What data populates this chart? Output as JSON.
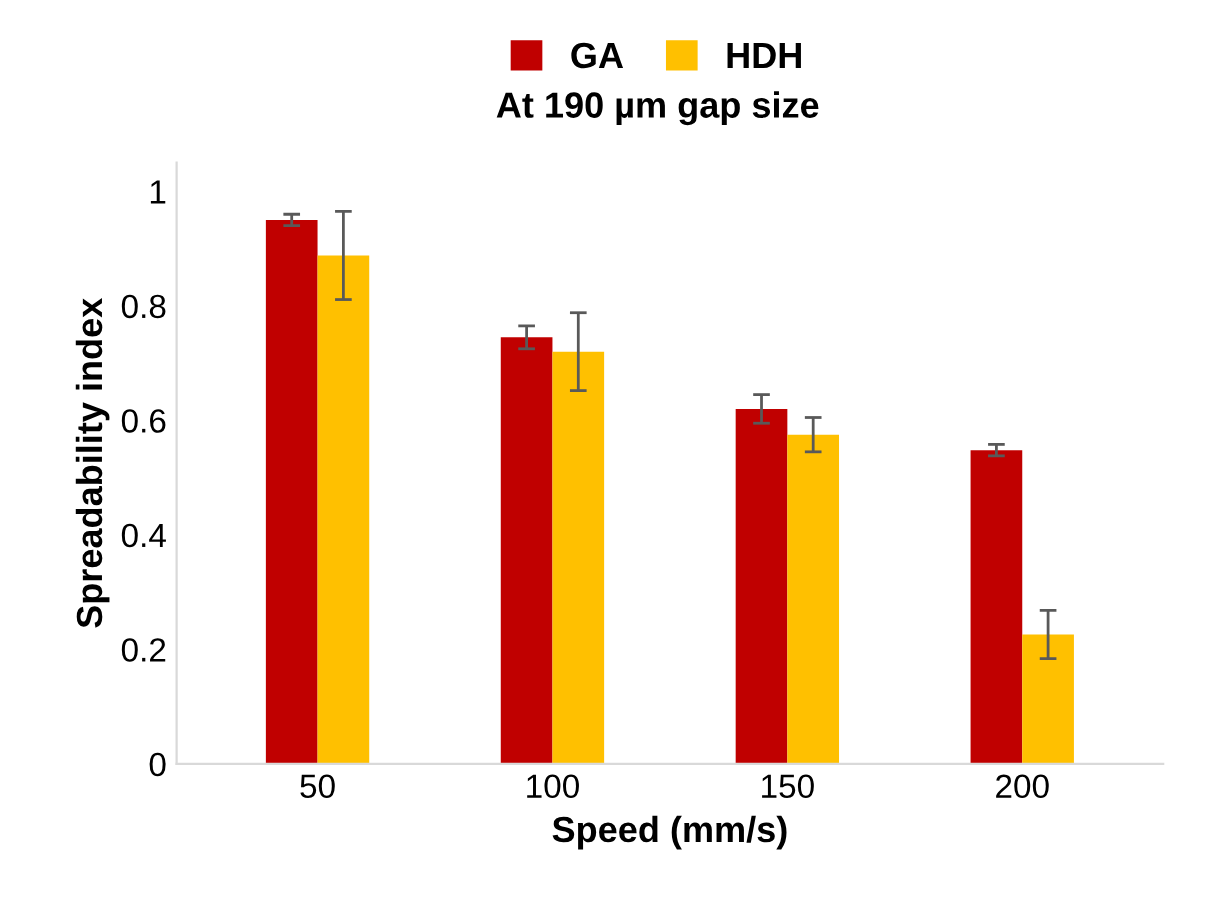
{
  "chart_data": {
    "type": "bar",
    "title": "At 190 µm gap size",
    "xlabel": "Speed (mm/s)",
    "ylabel": "Spreadability index",
    "categories": [
      "50",
      "100",
      "150",
      "200"
    ],
    "series": [
      {
        "name": "GA",
        "color": "#c00000",
        "values": [
          0.95,
          0.745,
          0.62,
          0.548
        ],
        "errors": [
          0.01,
          0.02,
          0.025,
          0.01
        ]
      },
      {
        "name": "HDH",
        "color": "#ffc000",
        "values": [
          0.888,
          0.72,
          0.575,
          0.226
        ],
        "errors": [
          0.077,
          0.068,
          0.03,
          0.042
        ]
      }
    ],
    "ylim": [
      0,
      1.05
    ],
    "yticks": [
      0,
      0.2,
      0.4,
      0.6,
      0.8,
      1
    ],
    "grid": false,
    "legend": "top"
  }
}
